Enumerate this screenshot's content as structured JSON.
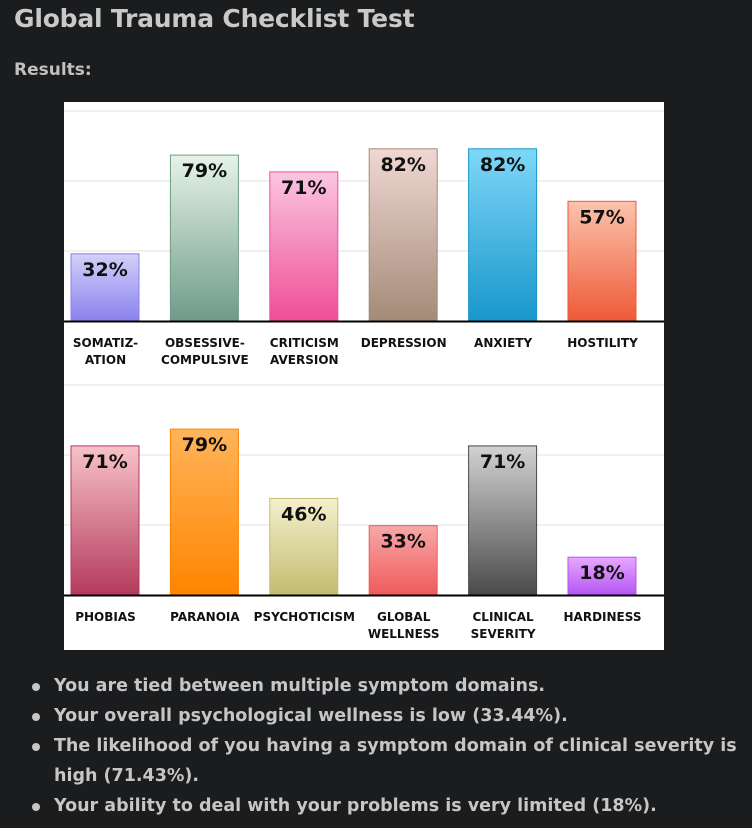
{
  "page": {
    "title": "Global Trauma Checklist Test",
    "results_label": "Results:"
  },
  "chart_data": [
    {
      "type": "bar",
      "categories": [
        [
          "SOMATIZ-",
          "ATION"
        ],
        [
          "OBSESSIVE-",
          "COMPULSIVE"
        ],
        [
          "CRITICISM",
          "AVERSION"
        ],
        [
          "DEPRESSION"
        ],
        [
          "ANXIETY"
        ],
        [
          "HOSTILITY"
        ]
      ],
      "values": [
        32,
        79,
        71,
        82,
        82,
        57
      ],
      "value_labels": [
        "32%",
        "79%",
        "71%",
        "82%",
        "82%",
        "57%"
      ],
      "ylim": [
        0,
        100
      ],
      "grid": true,
      "colors": [
        [
          "#d3d0f8",
          "#8a82ee"
        ],
        [
          "#e6f3e8",
          "#6f9b88"
        ],
        [
          "#fbc6e2",
          "#ef4e96"
        ],
        [
          "#f0d7d3",
          "#a38b78"
        ],
        [
          "#7fd7f8",
          "#1897cb"
        ],
        [
          "#fbc3ad",
          "#ee5a37"
        ]
      ]
    },
    {
      "type": "bar",
      "categories": [
        [
          "PHOBIAS"
        ],
        [
          "PARANOIA"
        ],
        [
          "PSYCHOTICISM"
        ],
        [
          "GLOBAL",
          "WELLNESS"
        ],
        [
          "CLINICAL",
          "SEVERITY"
        ],
        [
          "HARDINESS"
        ]
      ],
      "values": [
        71,
        79,
        46,
        33,
        71,
        18
      ],
      "value_labels": [
        "71%",
        "79%",
        "46%",
        "33%",
        "71%",
        "18%"
      ],
      "ylim": [
        0,
        100
      ],
      "grid": true,
      "colors": [
        [
          "#f8c2c8",
          "#b43a5c"
        ],
        [
          "#ffb45a",
          "#ff8500"
        ],
        [
          "#f5f0cd",
          "#c2bd70"
        ],
        [
          "#f8a8a8",
          "#ef5a5a"
        ],
        [
          "#d2d2d2",
          "#4a4a4a"
        ],
        [
          "#e8a8ff",
          "#b455f2"
        ]
      ]
    }
  ],
  "bullets": [
    "You are tied between multiple symptom domains.",
    "Your overall psychological wellness is low (33.44%).",
    "The likelihood of you having a symptom domain of clinical severity is high (71.43%).",
    "Your ability to deal with your problems is very limited (18%)."
  ]
}
